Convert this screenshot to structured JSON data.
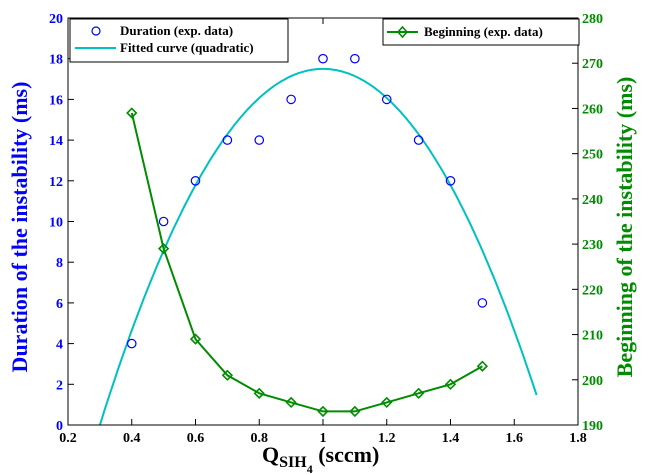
{
  "chart_data": {
    "type": "line",
    "xlabel": {
      "main": "Q",
      "sub1": "SIH",
      "sub2": "4",
      "unit": " (sccm)"
    },
    "ylabel_left": "Duration of the instability (ms)",
    "ylabel_right": "Beginning of the instability (ms)",
    "xlim": [
      0.2,
      1.8
    ],
    "ylim_left": [
      0,
      20
    ],
    "ylim_right": [
      190,
      280
    ],
    "x_ticks": [
      "0.2",
      "0.4",
      "0.6",
      "0.8",
      "1",
      "1.2",
      "1.4",
      "1.6",
      "1.8"
    ],
    "y_left_ticks": [
      "0",
      "2",
      "4",
      "6",
      "8",
      "10",
      "12",
      "14",
      "16",
      "18",
      "20"
    ],
    "y_right_ticks": [
      "190",
      "200",
      "210",
      "220",
      "230",
      "240",
      "250",
      "260",
      "270",
      "280"
    ],
    "grid": false,
    "legend_left": {
      "position": "top-left",
      "entries": [
        "Duration (exp. data)",
        "Fitted curve (quadratic)"
      ]
    },
    "legend_right": {
      "position": "top-right",
      "entries": [
        "Beginning (exp. data)"
      ]
    },
    "series": [
      {
        "name": "Duration (exp. data)",
        "axis": "left",
        "style": "open-circle",
        "color": "#0000ff",
        "x": [
          0.4,
          0.5,
          0.6,
          0.7,
          0.8,
          0.9,
          1.0,
          1.1,
          1.2,
          1.3,
          1.4,
          1.5
        ],
        "y": [
          4,
          10,
          12,
          14,
          14,
          16,
          18,
          18,
          16,
          14,
          12,
          6
        ]
      },
      {
        "name": "Fitted curve (quadratic)",
        "axis": "left",
        "style": "line",
        "color": "#00c0c0",
        "vertex": [
          1.0,
          17.5
        ],
        "roots": [
          0.3,
          1.67
        ]
      },
      {
        "name": "Beginning (exp. data)",
        "axis": "right",
        "style": "line-diamond",
        "color": "#008c00",
        "x": [
          0.4,
          0.5,
          0.6,
          0.7,
          0.8,
          0.9,
          1.0,
          1.1,
          1.2,
          1.3,
          1.4,
          1.5
        ],
        "y": [
          259,
          229,
          209,
          201,
          197,
          195,
          193,
          193,
          195,
          197,
          199,
          203
        ]
      }
    ]
  }
}
